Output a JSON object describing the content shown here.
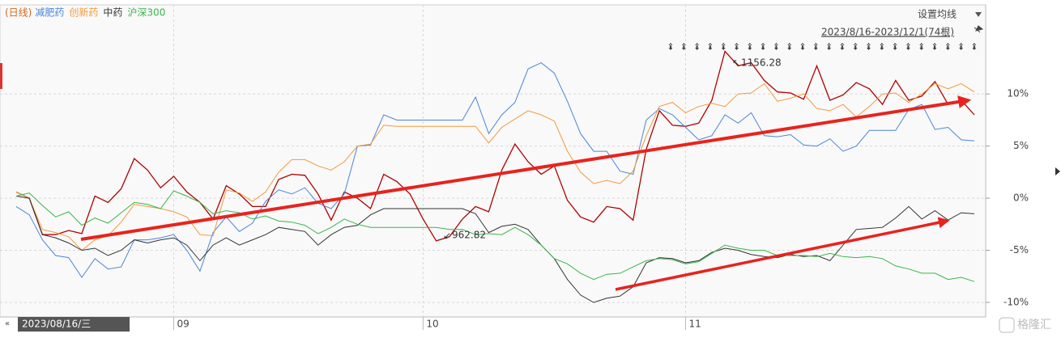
{
  "chart_data": {
    "type": "line",
    "period_label": "(日线)",
    "settings_label": "设置均线",
    "range_label": "2023/8/16-2023/12/1(74根)",
    "cursor_date": "2023/08/16/三",
    "annotations": [
      "1156.28",
      "962.82"
    ],
    "watermark": "格隆汇",
    "grid": true,
    "categories": [
      null,
      null,
      null,
      null,
      null,
      null,
      null,
      null,
      null,
      null,
      null,
      null,
      "09",
      null,
      null,
      null,
      null,
      null,
      null,
      null,
      null,
      null,
      null,
      null,
      null,
      null,
      null,
      null,
      null,
      null,
      null,
      "10",
      null,
      null,
      null,
      null,
      null,
      null,
      null,
      null,
      null,
      null,
      null,
      null,
      null,
      null,
      null,
      null,
      null,
      null,
      null,
      "11",
      null,
      null,
      null,
      null,
      null,
      null,
      null,
      null,
      null,
      null,
      null,
      null,
      null,
      null,
      null,
      null,
      null,
      null,
      null,
      null,
      null,
      null
    ],
    "ylim": [
      -11.4,
      18.4
    ],
    "yticks": [
      {
        "value": 10,
        "label": "10%"
      },
      {
        "value": 5,
        "label": "5%"
      },
      {
        "value": 0,
        "label": "0%"
      },
      {
        "value": -5,
        "label": "-5%"
      },
      {
        "value": -10,
        "label": "-10%"
      }
    ],
    "series": [
      {
        "color": "#b00000",
        "values": [
          0.6,
          0,
          -3.5,
          -3.5,
          -3.1,
          -3.4,
          0.2,
          -0.4,
          0.9,
          3.8,
          2.7,
          1.0,
          2.1,
          0.6,
          -0.4,
          -2.0,
          1.2,
          0.4,
          -0.8,
          -0.8,
          1.8,
          2.3,
          2.2,
          0.4,
          -2.1,
          0.6,
          0,
          -1.0,
          2.3,
          1.6,
          0.4,
          -2.0,
          -4.1,
          -3.7,
          -2.0,
          -0.8,
          -1.3,
          2.7,
          5.2,
          3.5,
          2.3,
          3.1,
          -0.2,
          -1.8,
          -2.3,
          -0.8,
          -1.0,
          -2.1,
          4.7,
          8.4,
          7.0,
          6.9,
          7.2,
          9.4,
          14.1,
          12.7,
          13.0,
          11.3,
          10.2,
          10.1,
          9.5,
          12.7,
          9.4,
          9.9,
          11.1,
          10.5,
          9.0,
          11.3,
          9.4,
          9.8,
          11.2,
          9.0,
          9.4,
          8.0
        ]
      },
      {
        "name": "减肥药",
        "color": "#4a86d8",
        "values": [
          -0.8,
          -1.6,
          -4.0,
          -5.5,
          -5.7,
          -7.6,
          -5.8,
          -6.8,
          -6.6,
          -4.0,
          -4.0,
          -3.8,
          -3.5,
          -5.0,
          -7.0,
          -3.3,
          -1.8,
          -3.2,
          -2.4,
          -0.3,
          0.8,
          0.4,
          1.0,
          -0.5,
          -1.0,
          0.4,
          5.0,
          5.1,
          8.0,
          7.5,
          7.5,
          7.5,
          7.5,
          7.5,
          7.5,
          9.7,
          6.2,
          8.0,
          9.2,
          12.4,
          13.0,
          12.0,
          9.3,
          6.2,
          4.5,
          4.5,
          2.6,
          2.3,
          7.5,
          8.6,
          8.0,
          6.8,
          5.6,
          6.0,
          8.0,
          7.2,
          8.2,
          6.0,
          5.9,
          6.1,
          5.1,
          5.0,
          5.7,
          4.5,
          5.0,
          6.5,
          6.5,
          6.5,
          8.5,
          9.0,
          6.6,
          6.8,
          5.6,
          5.5
        ]
      },
      {
        "name": "创新药",
        "color": "#f39a3b",
        "values": [
          0.6,
          0,
          -3.0,
          -3.3,
          -3.7,
          -5.0,
          -4.0,
          -3.6,
          -2.3,
          -0.6,
          -0.8,
          -1.0,
          -1.3,
          -1.8,
          -3.5,
          -3.6,
          0.8,
          0.5,
          -0.3,
          0.6,
          2.5,
          3.7,
          3.7,
          3.1,
          2.7,
          3.5,
          5.0,
          5.2,
          7.0,
          6.9,
          6.9,
          6.9,
          6.9,
          6.9,
          6.9,
          6.9,
          5.3,
          6.8,
          7.6,
          8.4,
          8.0,
          7.4,
          4.5,
          2.5,
          1.4,
          1.7,
          1.4,
          2.6,
          6.0,
          8.8,
          9.2,
          8.2,
          8.8,
          9.1,
          8.8,
          10.0,
          10.1,
          11.0,
          9.3,
          9.6,
          10.0,
          8.6,
          8.4,
          9.0,
          7.8,
          8.8,
          10.0,
          10.1,
          9.2,
          10.0,
          11.0,
          10.5,
          11.0,
          10.2
        ]
      },
      {
        "name": "中药",
        "color": "#333333",
        "values": [
          0.2,
          0,
          -3.5,
          -3.8,
          -4.3,
          -5.0,
          -4.8,
          -5.5,
          -5.0,
          -4.0,
          -4.3,
          -4.0,
          -3.8,
          -4.5,
          -6.0,
          -4.5,
          -3.8,
          -4.5,
          -4.0,
          -3.5,
          -2.8,
          -3.0,
          -3.2,
          -4.5,
          -3.5,
          -2.8,
          -2.6,
          -1.6,
          -1.0,
          -1.0,
          -1.0,
          -1.0,
          -1.0,
          -1.0,
          -1.0,
          -1.5,
          -3.3,
          -2.7,
          -2.5,
          -3.0,
          -4.5,
          -5.8,
          -7.8,
          -9.3,
          -10.0,
          -9.6,
          -9.4,
          -8.5,
          -6.2,
          -5.7,
          -5.8,
          -6.2,
          -6.0,
          -5.2,
          -4.8,
          -5.0,
          -5.4,
          -5.6,
          -5.7,
          -5.4,
          -5.6,
          -5.5,
          -6.0,
          -4.5,
          -3.0,
          -2.9,
          -2.8,
          -1.9,
          -0.8,
          -2.0,
          -1.2,
          -2.1,
          -1.4,
          -1.5
        ]
      },
      {
        "name": "沪深300",
        "color": "#3ab54a",
        "values": [
          0.2,
          0.5,
          -0.7,
          -1.8,
          -1.3,
          -2.6,
          -1.9,
          -2.4,
          -1.4,
          -0.4,
          -0.6,
          -1.0,
          0.7,
          0.2,
          -0.4,
          -1.5,
          -1.2,
          -1.4,
          -2.0,
          -1.7,
          -2.2,
          -2.3,
          -2.6,
          -3.4,
          -2.8,
          -2.0,
          -2.5,
          -2.8,
          -2.8,
          -2.8,
          -2.8,
          -2.8,
          -2.8,
          -3.0,
          -3.0,
          -3.5,
          -3.4,
          -3.5,
          -2.8,
          -3.5,
          -4.5,
          -5.8,
          -6.3,
          -7.2,
          -7.8,
          -7.3,
          -7.2,
          -6.6,
          -6.0,
          -5.8,
          -5.9,
          -6.3,
          -6.1,
          -5.3,
          -4.5,
          -4.8,
          -5.0,
          -5.0,
          -5.5,
          -5.5,
          -5.5,
          -5.6,
          -5.3,
          -5.6,
          -5.7,
          -5.6,
          -5.8,
          -6.5,
          -6.8,
          -7.2,
          -7.2,
          -7.8,
          -7.6,
          -8.0
        ]
      }
    ]
  }
}
